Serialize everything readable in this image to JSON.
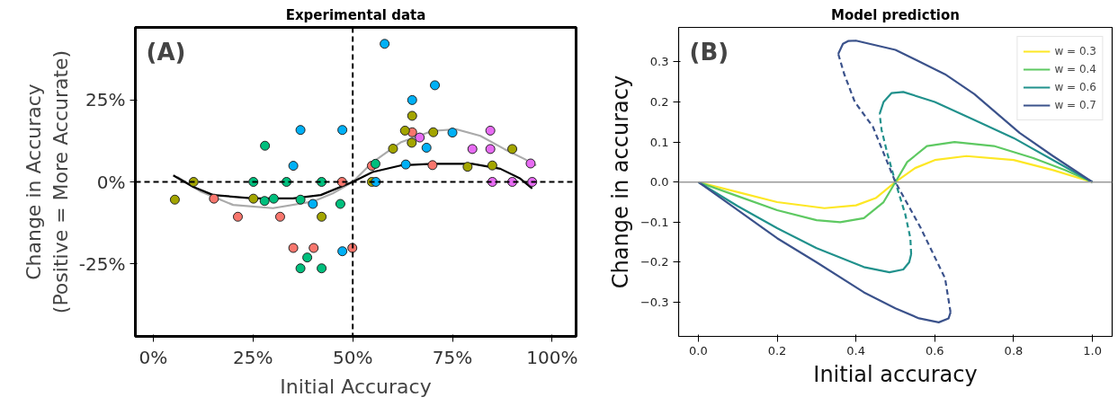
{
  "chart_data": [
    {
      "type": "scatter",
      "title": "Experimental data",
      "xlabel": "Initial Accuracy",
      "ylabel": "Change in Accuracy\n(Positive = More Accurate)",
      "annotations": [
        "(A)"
      ],
      "grid": false,
      "legend": false,
      "xlim": [
        -4.5,
        106
      ],
      "ylim": [
        -47,
        47
      ],
      "xticks": [
        {
          "value": 0,
          "label": "0%"
        },
        {
          "value": 25,
          "label": "25%"
        },
        {
          "value": 50,
          "label": "50%"
        },
        {
          "value": 75,
          "label": "75%"
        },
        {
          "value": 100,
          "label": "100%"
        }
      ],
      "yticks": [
        {
          "value": -25,
          "label": "-25%"
        },
        {
          "value": 0,
          "label": "0%"
        },
        {
          "value": 25,
          "label": "25%"
        }
      ],
      "ref_lines": [
        {
          "axis": "y",
          "value": 0,
          "label": null,
          "color": "#000000",
          "line_style": "dashed"
        },
        {
          "axis": "x",
          "value": 50,
          "label": null,
          "color": "#000000",
          "line_style": "dashed"
        }
      ],
      "series": [
        {
          "type": "line",
          "color": "#aaaaaa",
          "x": [
            6,
            12,
            20,
            30,
            40,
            45,
            50,
            55,
            62,
            70,
            76,
            82,
            88,
            93,
            96
          ],
          "values": [
            1.5,
            -3,
            -7,
            -8,
            -6,
            -3.5,
            0,
            6,
            12,
            15.5,
            16,
            14,
            10,
            7,
            5
          ]
        },
        {
          "type": "line",
          "color": "#000000",
          "x": [
            5,
            10,
            15,
            25,
            35,
            42,
            50,
            55,
            62,
            70,
            80,
            87,
            92,
            95
          ],
          "values": [
            2,
            -1.5,
            -4,
            -5,
            -5,
            -4,
            0,
            3,
            5,
            5.5,
            5.5,
            4,
            1,
            -2
          ]
        },
        {
          "type": "scatter",
          "marker": "circle",
          "color": "#f8766d",
          "x": [
            15.2,
            21.2,
            31.8,
            35.1,
            40.2,
            47.3,
            49.9,
            54.8,
            64.9,
            70.0
          ],
          "values": [
            -5.1,
            -10.6,
            -10.6,
            -20.1,
            -20.1,
            0,
            -20.1,
            4.9,
            15.1,
            5.1
          ]
        },
        {
          "type": "scatter",
          "marker": "circle",
          "color": "#a3a500",
          "x": [
            5.4,
            10.1,
            25.1,
            42.2,
            54.8,
            60.1,
            63.1,
            64.8,
            64.9,
            70.2,
            78.8,
            85,
            90
          ],
          "values": [
            -5.4,
            0,
            -5.1,
            -10.6,
            0,
            10.1,
            15.6,
            11.9,
            20.1,
            15.1,
            4.6,
            5,
            10
          ]
        },
        {
          "type": "scatter",
          "marker": "circle",
          "color": "#00bf7d",
          "x": [
            25.1,
            27.9,
            28.0,
            30.2,
            33.4,
            36.9,
            36.9,
            38.6,
            42.2,
            42.2,
            46.9,
            55.7
          ],
          "values": [
            0,
            -5.8,
            11.0,
            -5.1,
            0,
            -5.4,
            -26.3,
            -23.0,
            0,
            -26.3,
            -6.7,
            5.5
          ]
        },
        {
          "type": "scatter",
          "marker": "circle",
          "color": "#00b0f6",
          "x": [
            35.1,
            36.9,
            40.0,
            47.4,
            47.4,
            55.8,
            58.0,
            63.3,
            64.9,
            68.5,
            70.6,
            75
          ],
          "values": [
            4.9,
            15.8,
            -6.7,
            15.8,
            -21.1,
            0,
            42.0,
            5.3,
            24.9,
            10.4,
            29.4,
            15
          ]
        },
        {
          "type": "scatter",
          "marker": "circle",
          "color": "#e76bf3",
          "x": [
            66.8,
            80,
            84.5,
            84.5,
            85,
            90,
            94.6,
            95
          ],
          "values": [
            13.5,
            10,
            15.6,
            10,
            0,
            0,
            5.6,
            0
          ]
        }
      ]
    },
    {
      "type": "line",
      "title": "Model prediction",
      "xlabel": "Initial accuracy",
      "ylabel": "Change in accuracy",
      "annotations": [
        "(B)"
      ],
      "grid": false,
      "legend": "top right",
      "xlim": [
        -0.05,
        1.05
      ],
      "ylim": [
        -0.385,
        0.386
      ],
      "xticks": [
        {
          "value": 0,
          "label": "0.0"
        },
        0.2,
        0.4,
        0.6,
        0.8,
        {
          "value": 1,
          "label": "1.0"
        }
      ],
      "yticks": [
        {
          "value": -0.3,
          "label": "−0.3"
        },
        {
          "value": -0.2,
          "label": "−0.2"
        },
        {
          "value": -0.1,
          "label": "−0.1"
        },
        {
          "value": 0,
          "label": "0.0"
        },
        0.1,
        0.2,
        0.3
      ],
      "ref_lines": [
        {
          "axis": "y",
          "value": 0,
          "label": null,
          "color": "#999999",
          "line_style": "solid"
        }
      ],
      "series": [
        {
          "name": "w = 0.3",
          "color": "#fde725",
          "x": [
            0,
            0.1,
            0.2,
            0.32,
            0.4,
            0.45,
            0.5,
            0.55,
            0.6,
            0.68,
            0.8,
            0.9,
            1
          ],
          "values": [
            0,
            -0.025,
            -0.05,
            -0.065,
            -0.058,
            -0.04,
            0,
            0.035,
            0.055,
            0.065,
            0.055,
            0.03,
            0
          ]
        },
        {
          "name": "w = 0.4",
          "color": "#5ec962",
          "x": [
            0,
            0.1,
            0.2,
            0.3,
            0.36,
            0.42,
            0.47,
            0.5,
            0.53,
            0.58,
            0.65,
            0.75,
            0.85,
            0.93,
            1
          ],
          "values": [
            0,
            -0.035,
            -0.07,
            -0.095,
            -0.1,
            -0.09,
            -0.05,
            0,
            0.05,
            0.09,
            0.1,
            0.09,
            0.06,
            0.03,
            0
          ]
        },
        {
          "name": "w = 0.6",
          "color": "#21918c",
          "x": [
            0,
            0.1,
            0.2,
            0.3,
            0.42,
            0.485,
            0.52,
            0.535,
            0.54
          ],
          "values": [
            0,
            -0.06,
            -0.115,
            -0.165,
            -0.212,
            -0.225,
            -0.218,
            -0.2,
            -0.18
          ]
        },
        {
          "color": "#21918c",
          "line_style": "dashed",
          "x": [
            0.54,
            0.538,
            0.525,
            0.5,
            0.48,
            0.465,
            0.46
          ],
          "values": [
            -0.18,
            -0.14,
            -0.08,
            0,
            0.07,
            0.13,
            0.17
          ]
        },
        {
          "color": "#21918c",
          "x": [
            0.46,
            0.47,
            0.49,
            0.52,
            0.6,
            0.7,
            0.8,
            0.9,
            1
          ],
          "values": [
            0.17,
            0.2,
            0.222,
            0.225,
            0.2,
            0.155,
            0.11,
            0.055,
            0
          ]
        },
        {
          "name": "w = 0.7",
          "color": "#3b528b",
          "x": [
            0,
            0.1,
            0.2,
            0.3,
            0.42,
            0.5,
            0.56,
            0.61,
            0.635,
            0.64
          ],
          "values": [
            0,
            -0.07,
            -0.14,
            -0.2,
            -0.275,
            -0.315,
            -0.34,
            -0.35,
            -0.34,
            -0.325
          ]
        },
        {
          "color": "#3b528b",
          "line_style": "dashed",
          "x": [
            0.64,
            0.626,
            0.564,
            0.5,
            0.443,
            0.397,
            0.37,
            0.355
          ],
          "values": [
            -0.325,
            -0.24,
            -0.114,
            0,
            0.138,
            0.2,
            0.27,
            0.32
          ]
        },
        {
          "color": "#3b528b",
          "x": [
            0.355,
            0.367,
            0.38,
            0.4,
            0.5,
            0.626,
            0.7,
            0.815,
            0.9,
            1
          ],
          "values": [
            0.32,
            0.345,
            0.352,
            0.353,
            0.33,
            0.269,
            0.22,
            0.123,
            0.065,
            0
          ]
        }
      ]
    }
  ]
}
